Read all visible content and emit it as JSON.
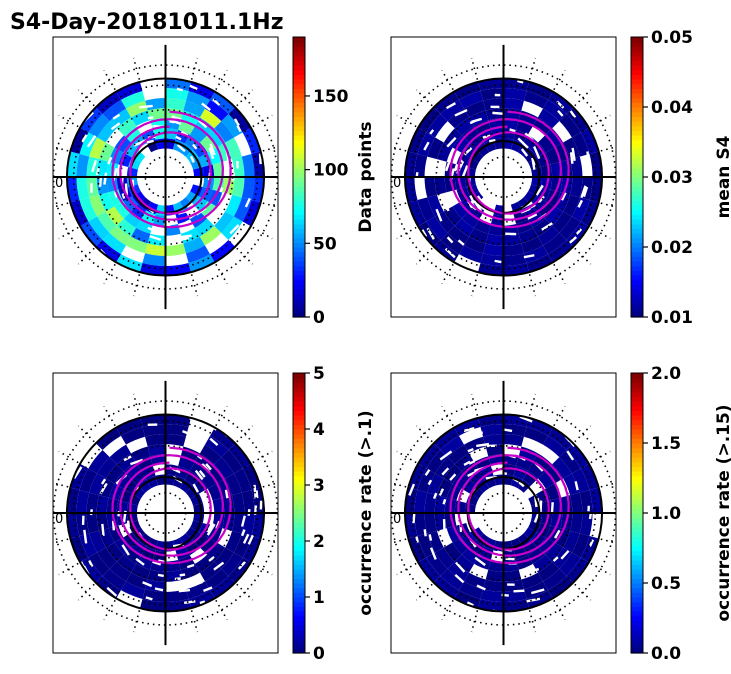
{
  "figure": {
    "title": "S4-Day-20181011.1Hz",
    "pole_label": "0"
  },
  "chart_data": [
    {
      "type": "heatmap",
      "subtype": "polar",
      "name": "data-points",
      "colorbar": {
        "label": "Data points",
        "range": [
          0,
          190
        ],
        "ticks": [
          0,
          50,
          100,
          150
        ],
        "tick_labels": [
          "0",
          "50",
          "100",
          "150"
        ],
        "colormap": "jet"
      },
      "rings": [
        {
          "r": 0.3,
          "w": 0.09,
          "level": 0.18,
          "seed": 1
        },
        {
          "r": 0.39,
          "w": 0.09,
          "level": 0.22,
          "seed": 2
        },
        {
          "r": 0.48,
          "w": 0.09,
          "level": 0.32,
          "seed": 3
        },
        {
          "r": 0.57,
          "w": 0.09,
          "level": 0.4,
          "seed": 4
        },
        {
          "r": 0.66,
          "w": 0.09,
          "level": 0.42,
          "seed": 5
        },
        {
          "r": 0.75,
          "w": 0.09,
          "level": 0.3,
          "seed": 6
        },
        {
          "r": 0.84,
          "w": 0.09,
          "level": 0.18,
          "seed": 7
        }
      ]
    },
    {
      "type": "heatmap",
      "subtype": "polar",
      "name": "mean-s4",
      "colorbar": {
        "label": "mean S4",
        "range": [
          0.01,
          0.05
        ],
        "ticks": [
          0.01,
          0.02,
          0.03,
          0.04,
          0.05
        ],
        "tick_labels": [
          "0.01",
          "0.02",
          "0.03",
          "0.04",
          "0.05"
        ],
        "colormap": "jet"
      },
      "rings": [
        {
          "r": 0.3,
          "w": 0.09,
          "level": 0.02,
          "seed": 11
        },
        {
          "r": 0.39,
          "w": 0.09,
          "level": 0.02,
          "seed": 12
        },
        {
          "r": 0.48,
          "w": 0.09,
          "level": 0.02,
          "seed": 13
        },
        {
          "r": 0.57,
          "w": 0.09,
          "level": 0.02,
          "seed": 14
        },
        {
          "r": 0.66,
          "w": 0.09,
          "level": 0.02,
          "seed": 15
        },
        {
          "r": 0.75,
          "w": 0.09,
          "level": 0.02,
          "seed": 16
        },
        {
          "r": 0.84,
          "w": 0.09,
          "level": 0.02,
          "seed": 17
        }
      ]
    },
    {
      "type": "heatmap",
      "subtype": "polar",
      "name": "occurrence-rate-01",
      "colorbar": {
        "label": "occurrence rate (>.1)",
        "range": [
          0,
          5
        ],
        "ticks": [
          0,
          1,
          2,
          3,
          4,
          5
        ],
        "tick_labels": [
          "0",
          "1",
          "2",
          "3",
          "4",
          "5"
        ],
        "colormap": "jet"
      },
      "rings": [
        {
          "r": 0.3,
          "w": 0.09,
          "level": 0.01,
          "seed": 21
        },
        {
          "r": 0.39,
          "w": 0.09,
          "level": 0.01,
          "seed": 22
        },
        {
          "r": 0.48,
          "w": 0.09,
          "level": 0.01,
          "seed": 23
        },
        {
          "r": 0.57,
          "w": 0.09,
          "level": 0.01,
          "seed": 24
        },
        {
          "r": 0.66,
          "w": 0.09,
          "level": 0.01,
          "seed": 25
        },
        {
          "r": 0.75,
          "w": 0.09,
          "level": 0.01,
          "seed": 26
        },
        {
          "r": 0.84,
          "w": 0.09,
          "level": 0.01,
          "seed": 27
        }
      ]
    },
    {
      "type": "heatmap",
      "subtype": "polar",
      "name": "occurrence-rate-015",
      "colorbar": {
        "label": "occurrence rate (>.15)",
        "range": [
          0,
          2
        ],
        "ticks": [
          0,
          0.5,
          1,
          1.5,
          2
        ],
        "tick_labels": [
          "0.0",
          "0.5",
          "1.0",
          "1.5",
          "2.0"
        ],
        "colormap": "jet"
      },
      "rings": [
        {
          "r": 0.3,
          "w": 0.09,
          "level": 0.01,
          "seed": 31
        },
        {
          "r": 0.39,
          "w": 0.09,
          "level": 0.01,
          "seed": 32
        },
        {
          "r": 0.48,
          "w": 0.09,
          "level": 0.01,
          "seed": 33
        },
        {
          "r": 0.57,
          "w": 0.09,
          "level": 0.01,
          "seed": 34
        },
        {
          "r": 0.66,
          "w": 0.09,
          "level": 0.01,
          "seed": 35
        },
        {
          "r": 0.75,
          "w": 0.09,
          "level": 0.01,
          "seed": 36
        },
        {
          "r": 0.84,
          "w": 0.09,
          "level": 0.01,
          "seed": 37
        }
      ]
    }
  ],
  "colors": {
    "oval": "#c800c8",
    "grid": "#000000",
    "axes_frame": "#000000"
  }
}
